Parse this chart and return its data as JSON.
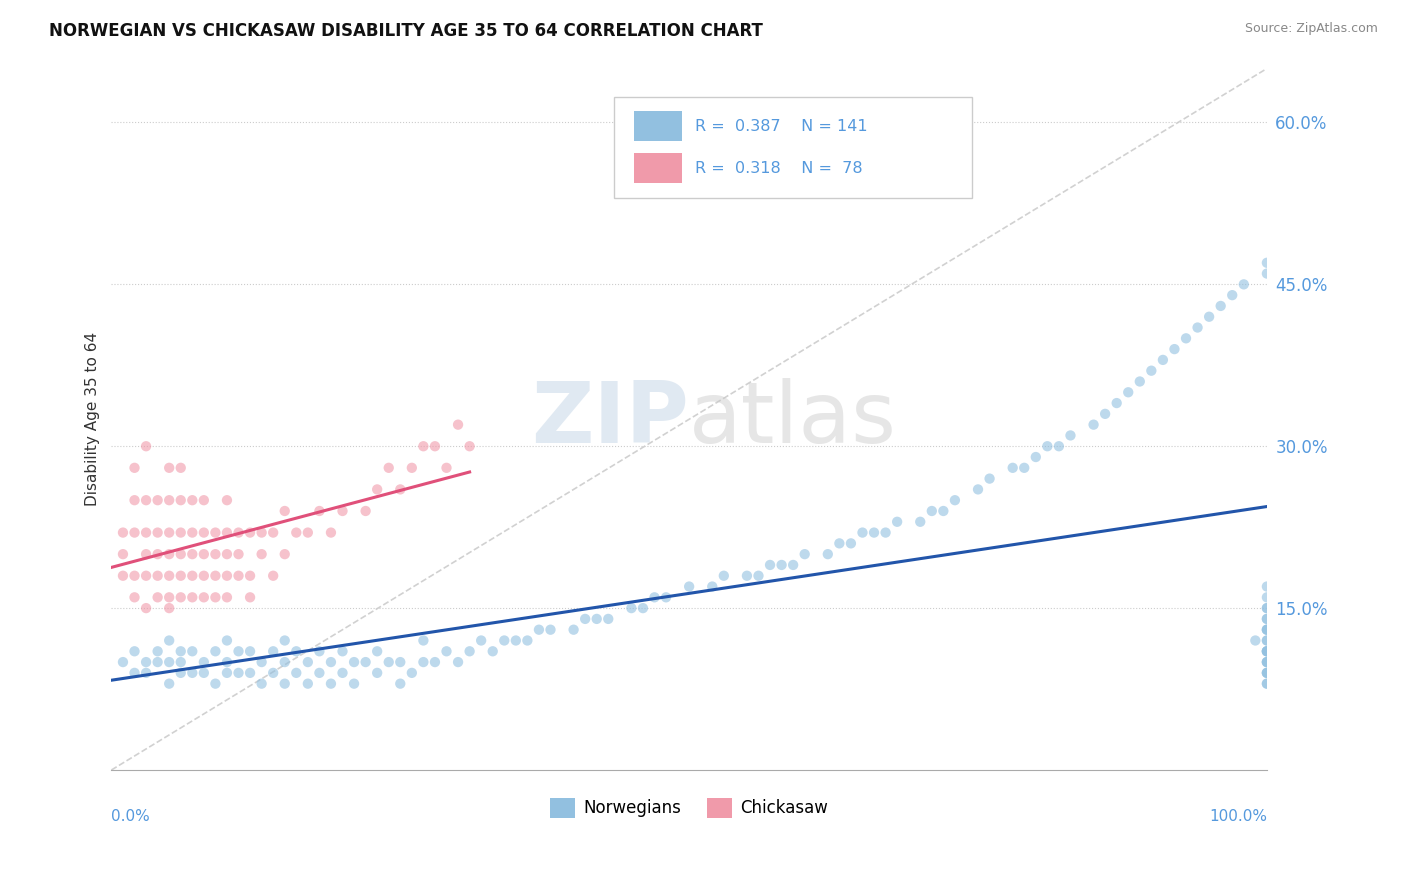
{
  "title": "NORWEGIAN VS CHICKASAW DISABILITY AGE 35 TO 64 CORRELATION CHART",
  "source": "Source: ZipAtlas.com",
  "ylabel": "Disability Age 35 to 64",
  "xlim": [
    0,
    100
  ],
  "ylim": [
    0,
    65
  ],
  "ytick_vals": [
    0,
    15,
    30,
    45,
    60
  ],
  "ytick_labels": [
    "",
    "15.0%",
    "30.0%",
    "45.0%",
    "60.0%"
  ],
  "norwegian_color": "#92c0e0",
  "chickasaw_color": "#f09aaa",
  "trendline_norwegian_color": "#2255aa",
  "trendline_chickasaw_color": "#e0507a",
  "watermark_zip": "ZIP",
  "watermark_atlas": "atlas",
  "background_color": "#ffffff",
  "grid_color": "#cccccc",
  "norwegian_R": 0.387,
  "norwegian_N": 141,
  "chickasaw_R": 0.318,
  "chickasaw_N": 78,
  "nor_x": [
    1,
    2,
    2,
    3,
    3,
    4,
    4,
    5,
    5,
    5,
    6,
    6,
    6,
    7,
    7,
    8,
    8,
    9,
    9,
    10,
    10,
    10,
    11,
    11,
    12,
    12,
    13,
    13,
    14,
    14,
    15,
    15,
    15,
    16,
    16,
    17,
    17,
    18,
    18,
    19,
    19,
    20,
    20,
    21,
    21,
    22,
    23,
    23,
    24,
    25,
    25,
    26,
    27,
    27,
    28,
    29,
    30,
    31,
    32,
    33,
    34,
    35,
    36,
    37,
    38,
    40,
    41,
    42,
    43,
    45,
    46,
    47,
    48,
    50,
    52,
    53,
    55,
    56,
    57,
    58,
    59,
    60,
    62,
    63,
    64,
    65,
    66,
    67,
    68,
    70,
    71,
    72,
    73,
    75,
    76,
    78,
    79,
    80,
    81,
    82,
    83,
    85,
    86,
    87,
    88,
    89,
    90,
    91,
    92,
    93,
    94,
    95,
    96,
    97,
    98,
    99,
    100,
    100,
    100,
    100,
    100,
    100,
    100,
    100,
    100,
    100,
    100,
    100,
    100,
    100,
    100,
    100,
    100,
    100,
    100,
    100,
    100,
    100,
    100,
    100,
    100
  ],
  "nor_y": [
    10,
    9,
    11,
    9,
    10,
    10,
    11,
    8,
    10,
    12,
    9,
    10,
    11,
    9,
    11,
    9,
    10,
    8,
    11,
    9,
    10,
    12,
    9,
    11,
    9,
    11,
    8,
    10,
    9,
    11,
    8,
    10,
    12,
    9,
    11,
    8,
    10,
    9,
    11,
    8,
    10,
    9,
    11,
    8,
    10,
    10,
    9,
    11,
    10,
    8,
    10,
    9,
    10,
    12,
    10,
    11,
    10,
    11,
    12,
    11,
    12,
    12,
    12,
    13,
    13,
    13,
    14,
    14,
    14,
    15,
    15,
    16,
    16,
    17,
    17,
    18,
    18,
    18,
    19,
    19,
    19,
    20,
    20,
    21,
    21,
    22,
    22,
    22,
    23,
    23,
    24,
    24,
    25,
    26,
    27,
    28,
    28,
    29,
    30,
    30,
    31,
    32,
    33,
    34,
    35,
    36,
    37,
    38,
    39,
    40,
    41,
    42,
    43,
    44,
    45,
    12,
    13,
    14,
    15,
    16,
    17,
    11,
    12,
    13,
    14,
    15,
    9,
    10,
    11,
    12,
    13,
    8,
    9,
    10,
    11,
    8,
    9,
    10,
    11,
    47,
    46
  ],
  "chk_x": [
    1,
    1,
    1,
    2,
    2,
    2,
    2,
    2,
    3,
    3,
    3,
    3,
    3,
    3,
    4,
    4,
    4,
    4,
    4,
    5,
    5,
    5,
    5,
    5,
    5,
    5,
    6,
    6,
    6,
    6,
    6,
    6,
    7,
    7,
    7,
    7,
    7,
    8,
    8,
    8,
    8,
    8,
    9,
    9,
    9,
    9,
    10,
    10,
    10,
    10,
    10,
    11,
    11,
    11,
    12,
    12,
    12,
    13,
    13,
    14,
    14,
    15,
    15,
    16,
    17,
    18,
    19,
    20,
    22,
    23,
    24,
    25,
    26,
    27,
    28,
    29,
    30,
    31
  ],
  "chk_y": [
    20,
    22,
    18,
    18,
    22,
    25,
    16,
    28,
    20,
    15,
    22,
    18,
    25,
    30,
    18,
    22,
    16,
    25,
    20,
    15,
    20,
    25,
    18,
    22,
    28,
    16,
    20,
    25,
    18,
    22,
    28,
    16,
    18,
    22,
    25,
    20,
    16,
    18,
    22,
    25,
    16,
    20,
    18,
    22,
    16,
    20,
    18,
    22,
    16,
    25,
    20,
    18,
    22,
    20,
    18,
    22,
    16,
    20,
    22,
    18,
    22,
    20,
    24,
    22,
    22,
    24,
    22,
    24,
    24,
    26,
    28,
    26,
    28,
    30,
    30,
    28,
    32,
    30
  ]
}
